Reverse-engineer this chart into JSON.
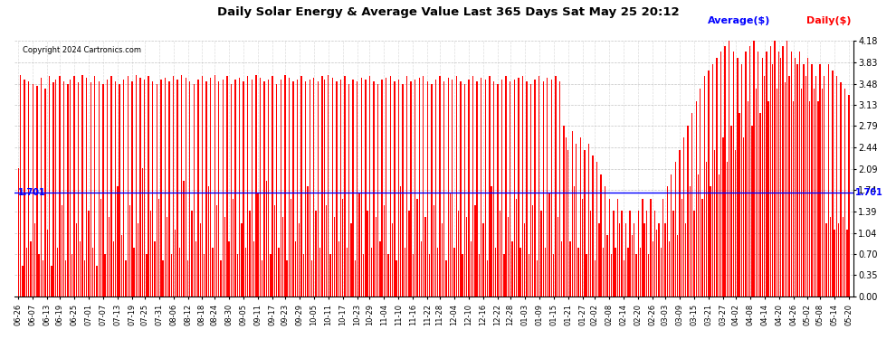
{
  "title": "Daily Solar Energy & Average Value Last 365 Days Sat May 25 20:12",
  "copyright": "Copyright 2024 Cartronics.com",
  "legend_avg": "Average($)",
  "legend_daily": "Daily($)",
  "avg_value": 1.701,
  "avg_label": "1.701",
  "ylim": [
    0.0,
    4.18
  ],
  "yticks": [
    0.0,
    0.35,
    0.7,
    1.04,
    1.39,
    1.74,
    2.09,
    2.44,
    2.79,
    3.13,
    3.48,
    3.83,
    4.18
  ],
  "bar_color": "#ff0000",
  "avg_line_color": "#0000ff",
  "bg_color": "#ffffff",
  "grid_color": "#aaaaaa",
  "title_color": "#000000",
  "copyright_color": "#000000",
  "bar_width": 0.6,
  "xlabels": [
    "06-26",
    "06-07",
    "06-13",
    "06-19",
    "06-25",
    "07-01",
    "07-07",
    "07-13",
    "07-19",
    "07-25",
    "07-31",
    "08-06",
    "08-12",
    "08-18",
    "08-24",
    "08-30",
    "09-05",
    "09-11",
    "09-17",
    "09-23",
    "09-29",
    "10-05",
    "10-11",
    "10-17",
    "10-23",
    "10-29",
    "11-04",
    "11-10",
    "11-16",
    "11-22",
    "11-28",
    "12-04",
    "12-10",
    "12-16",
    "12-22",
    "12-28",
    "01-03",
    "01-09",
    "01-15",
    "01-21",
    "01-27",
    "02-02",
    "02-08",
    "02-14",
    "02-20",
    "02-26",
    "03-03",
    "03-09",
    "03-15",
    "03-21",
    "03-27",
    "04-02",
    "04-08",
    "04-14",
    "04-20",
    "04-26",
    "05-02",
    "05-08",
    "05-14",
    "05-20"
  ],
  "values": [
    2.1,
    3.62,
    0.5,
    3.55,
    0.8,
    3.52,
    0.9,
    3.48,
    1.2,
    3.45,
    0.7,
    3.58,
    0.6,
    3.4,
    1.1,
    3.6,
    0.5,
    3.5,
    3.55,
    0.8,
    3.6,
    1.5,
    3.52,
    0.6,
    3.48,
    3.55,
    0.7,
    3.6,
    1.2,
    3.5,
    0.9,
    3.62,
    0.6,
    3.58,
    1.4,
    3.5,
    0.8,
    3.6,
    0.5,
    3.52,
    1.6,
    3.48,
    0.7,
    3.55,
    1.3,
    3.6,
    0.9,
    3.52,
    1.8,
    3.48,
    1.0,
    3.55,
    0.6,
    3.6,
    1.5,
    3.52,
    0.8,
    3.62,
    1.2,
    3.58,
    2.1,
    3.55,
    0.7,
    3.6,
    1.4,
    3.52,
    0.9,
    3.48,
    1.6,
    3.55,
    0.6,
    3.58,
    1.3,
    3.52,
    0.7,
    3.6,
    1.1,
    3.55,
    0.8,
    3.62,
    1.9,
    3.58,
    0.6,
    3.52,
    1.4,
    3.48,
    0.9,
    3.55,
    1.2,
    3.6,
    0.7,
    3.52,
    1.8,
    3.58,
    0.8,
    3.62,
    1.5,
    3.52,
    0.6,
    3.55,
    1.3,
    3.6,
    0.9,
    3.48,
    1.6,
    3.55,
    0.7,
    3.58,
    1.2,
    3.52,
    0.8,
    3.6,
    1.4,
    3.55,
    0.9,
    3.62,
    1.7,
    3.58,
    0.6,
    3.52,
    1.9,
    3.55,
    0.7,
    3.6,
    1.5,
    3.48,
    0.8,
    3.55,
    1.3,
    3.62,
    0.6,
    3.58,
    1.6,
    3.52,
    0.9,
    3.55,
    1.2,
    3.6,
    0.7,
    3.52,
    1.8,
    3.55,
    0.6,
    3.58,
    1.4,
    3.52,
    0.8,
    3.6,
    3.55,
    1.5,
    3.62,
    0.7,
    3.58,
    1.3,
    3.52,
    0.9,
    3.55,
    1.6,
    3.6,
    0.8,
    3.48,
    1.2,
    3.55,
    0.6,
    3.52,
    1.7,
    3.58,
    0.7,
    3.55,
    1.4,
    3.6,
    0.8,
    3.52,
    1.3,
    3.48,
    0.9,
    3.55,
    1.5,
    3.58,
    0.7,
    3.6,
    1.2,
    3.52,
    0.6,
    3.55,
    1.8,
    3.48,
    0.8,
    3.6,
    1.4,
    3.52,
    0.7,
    3.55,
    1.6,
    3.58,
    0.9,
    3.6,
    1.3,
    3.52,
    0.7,
    3.48,
    1.5,
    3.55,
    0.8,
    3.6,
    1.2,
    3.52,
    0.6,
    3.58,
    1.7,
    3.55,
    0.8,
    3.6,
    1.4,
    3.52,
    0.7,
    3.48,
    1.3,
    3.55,
    0.9,
    3.6,
    1.5,
    3.52,
    0.7,
    3.58,
    1.2,
    3.55,
    0.6,
    3.6,
    1.8,
    3.52,
    0.8,
    3.48,
    1.4,
    3.55,
    0.7,
    3.6,
    1.3,
    3.52,
    0.9,
    3.55,
    1.6,
    3.58,
    0.8,
    3.6,
    1.2,
    3.52,
    0.7,
    3.48,
    1.5,
    3.55,
    0.6,
    3.6,
    1.4,
    3.52,
    0.8,
    3.58,
    1.7,
    3.55,
    0.7,
    3.6,
    1.3,
    3.52,
    0.9,
    2.8,
    2.6,
    2.4,
    0.9,
    2.7,
    1.8,
    2.5,
    0.8,
    2.6,
    1.6,
    2.4,
    0.7,
    2.5,
    1.4,
    2.3,
    0.6,
    2.2,
    1.2,
    2.0,
    0.8,
    1.8,
    1.0,
    1.6,
    0.7,
    1.4,
    0.8,
    1.6,
    1.2,
    1.4,
    0.6,
    1.2,
    0.8,
    1.4,
    1.0,
    1.2,
    0.7,
    1.4,
    0.8,
    1.6,
    1.2,
    1.4,
    0.7,
    1.6,
    0.9,
    1.4,
    1.1,
    1.2,
    0.8,
    1.6,
    1.2,
    1.8,
    0.9,
    2.0,
    1.4,
    2.2,
    1.0,
    2.4,
    1.6,
    2.6,
    1.2,
    2.8,
    1.8,
    3.0,
    1.4,
    3.2,
    2.0,
    3.4,
    1.6,
    3.6,
    2.2,
    3.7,
    1.8,
    3.8,
    2.4,
    3.9,
    2.0,
    4.0,
    2.6,
    4.1,
    2.2,
    4.18,
    2.8,
    4.0,
    2.4,
    3.9,
    3.0,
    3.8,
    2.6,
    4.0,
    3.2,
    4.1,
    2.8,
    4.18,
    3.4,
    4.0,
    3.0,
    3.9,
    3.6,
    4.0,
    3.2,
    4.1,
    3.8,
    4.18,
    3.4,
    4.0,
    3.9,
    4.1,
    3.5,
    4.18,
    3.6,
    4.0,
    3.2,
    3.9,
    3.8,
    4.0,
    3.4,
    3.8,
    3.6,
    3.9,
    3.2,
    3.8,
    3.4,
    3.6,
    3.2,
    3.8,
    3.4,
    3.6,
    1.2,
    3.8,
    1.3,
    3.7,
    1.1,
    3.6,
    1.2,
    3.5,
    1.3,
    3.4,
    1.1,
    3.3
  ]
}
